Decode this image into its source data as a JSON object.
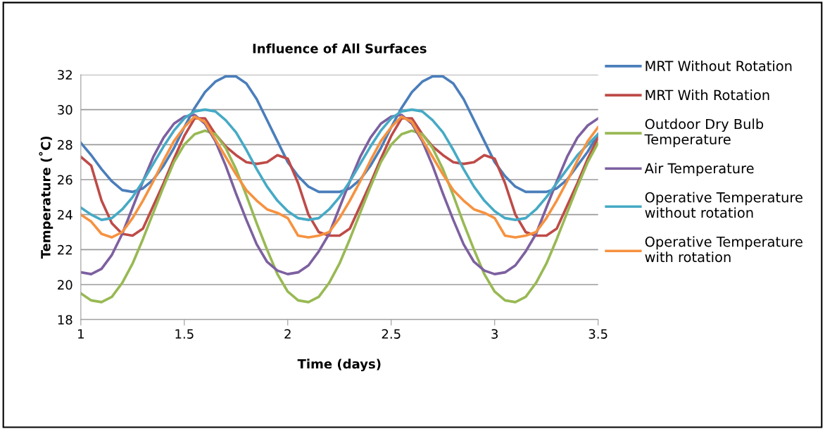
{
  "chart_data": {
    "type": "line",
    "title": "Influence of All Surfaces",
    "xlabel": "Time (days)",
    "ylabel": "Temperature (˚C)",
    "x": [
      1.0,
      1.05,
      1.1,
      1.15,
      1.2,
      1.25,
      1.3,
      1.35,
      1.4,
      1.45,
      1.5,
      1.55,
      1.6,
      1.65,
      1.7,
      1.75,
      1.8,
      1.85,
      1.9,
      1.95,
      2.0,
      2.05,
      2.1,
      2.15,
      2.2,
      2.25,
      2.3,
      2.35,
      2.4,
      2.45,
      2.5,
      2.55,
      2.6,
      2.65,
      2.7,
      2.75,
      2.8,
      2.85,
      2.9,
      2.95,
      3.0,
      3.05,
      3.1,
      3.15,
      3.2,
      3.25,
      3.3,
      3.35,
      3.4,
      3.45,
      3.5
    ],
    "series": [
      {
        "name": "MRT Without Rotation",
        "color": "#4a7ebb",
        "values": [
          28.1,
          27.4,
          26.6,
          25.9,
          25.4,
          25.3,
          25.5,
          26.0,
          26.8,
          27.8,
          29.0,
          30.1,
          31.0,
          31.6,
          31.9,
          31.9,
          31.5,
          30.6,
          29.4,
          28.2,
          27.0,
          26.2,
          25.6,
          25.3,
          25.3,
          25.3,
          25.5,
          26.0,
          26.8,
          27.8,
          29.0,
          30.1,
          31.0,
          31.6,
          31.9,
          31.9,
          31.5,
          30.6,
          29.4,
          28.2,
          27.0,
          26.2,
          25.6,
          25.3,
          25.3,
          25.3,
          25.5,
          26.0,
          26.8,
          27.6,
          28.6
        ]
      },
      {
        "name": "MRT With Rotation",
        "color": "#be4b48",
        "values": [
          27.3,
          26.8,
          24.8,
          23.5,
          22.9,
          22.8,
          23.2,
          24.5,
          25.8,
          27.2,
          28.5,
          29.5,
          29.5,
          28.6,
          27.9,
          27.4,
          27.0,
          26.9,
          27.0,
          27.4,
          27.2,
          25.8,
          24.0,
          23.0,
          22.8,
          22.8,
          23.2,
          24.5,
          25.8,
          27.2,
          28.5,
          29.5,
          29.5,
          28.6,
          27.9,
          27.4,
          27.0,
          26.9,
          27.0,
          27.4,
          27.2,
          25.8,
          24.0,
          23.0,
          22.8,
          22.8,
          23.2,
          24.5,
          25.8,
          27.2,
          28.4
        ]
      },
      {
        "name": "Outdoor Dry Bulb\nTemperature",
        "color": "#98b954",
        "values": [
          19.5,
          19.1,
          19.0,
          19.3,
          20.1,
          21.2,
          22.6,
          24.1,
          25.6,
          27.0,
          28.0,
          28.6,
          28.8,
          28.6,
          27.8,
          26.6,
          25.1,
          23.5,
          22.0,
          20.6,
          19.6,
          19.1,
          19.0,
          19.3,
          20.1,
          21.2,
          22.6,
          24.1,
          25.6,
          27.0,
          28.0,
          28.6,
          28.8,
          28.6,
          27.8,
          26.6,
          25.1,
          23.5,
          22.0,
          20.6,
          19.6,
          19.1,
          19.0,
          19.3,
          20.1,
          21.2,
          22.6,
          24.1,
          25.6,
          27.0,
          28.1
        ]
      },
      {
        "name": "Air Temperature",
        "color": "#7d60a0",
        "values": [
          20.7,
          20.6,
          20.9,
          21.7,
          22.9,
          24.4,
          25.9,
          27.3,
          28.4,
          29.2,
          29.6,
          29.7,
          29.2,
          28.2,
          26.8,
          25.2,
          23.7,
          22.3,
          21.3,
          20.8,
          20.6,
          20.7,
          21.1,
          21.9,
          22.9,
          24.4,
          25.9,
          27.3,
          28.4,
          29.2,
          29.6,
          29.7,
          29.2,
          28.2,
          26.8,
          25.2,
          23.7,
          22.3,
          21.3,
          20.8,
          20.6,
          20.7,
          21.1,
          21.9,
          22.9,
          24.4,
          25.9,
          27.3,
          28.4,
          29.1,
          29.5
        ]
      },
      {
        "name": "Operative Temperature\nwithout rotation",
        "color": "#46aac5",
        "values": [
          24.4,
          24.0,
          23.7,
          23.8,
          24.3,
          25.0,
          25.9,
          26.9,
          27.9,
          28.8,
          29.5,
          29.9,
          30.0,
          29.9,
          29.4,
          28.7,
          27.7,
          26.6,
          25.6,
          24.8,
          24.2,
          23.8,
          23.7,
          23.8,
          24.3,
          25.0,
          25.9,
          26.9,
          27.9,
          28.8,
          29.5,
          29.9,
          30.0,
          29.9,
          29.4,
          28.7,
          27.7,
          26.6,
          25.6,
          24.8,
          24.2,
          23.8,
          23.7,
          23.8,
          24.3,
          25.0,
          25.8,
          26.6,
          27.4,
          28.0,
          28.6
        ]
      },
      {
        "name": "Operative Temperature\nwith rotation",
        "color": "#f69240",
        "values": [
          24.0,
          23.6,
          22.9,
          22.7,
          23.0,
          23.8,
          24.8,
          25.9,
          27.1,
          28.2,
          29.0,
          29.6,
          29.3,
          28.3,
          27.3,
          26.3,
          25.4,
          24.8,
          24.3,
          24.1,
          23.8,
          22.8,
          22.7,
          22.8,
          23.0,
          23.8,
          24.8,
          25.9,
          27.1,
          28.2,
          29.0,
          29.6,
          29.3,
          28.3,
          27.3,
          26.3,
          25.4,
          24.8,
          24.3,
          24.1,
          23.8,
          22.8,
          22.7,
          22.8,
          23.0,
          23.8,
          24.8,
          25.9,
          27.1,
          28.2,
          29.0
        ]
      }
    ],
    "xlim": [
      1,
      3.5
    ],
    "xticks": [
      1,
      1.5,
      2,
      2.5,
      3,
      3.5
    ],
    "ylim": [
      18,
      32
    ],
    "yticks": [
      18,
      20,
      22,
      24,
      26,
      28,
      30,
      32
    ],
    "grid": "y",
    "legend": "right",
    "marker": "none",
    "line_style": "solid"
  }
}
